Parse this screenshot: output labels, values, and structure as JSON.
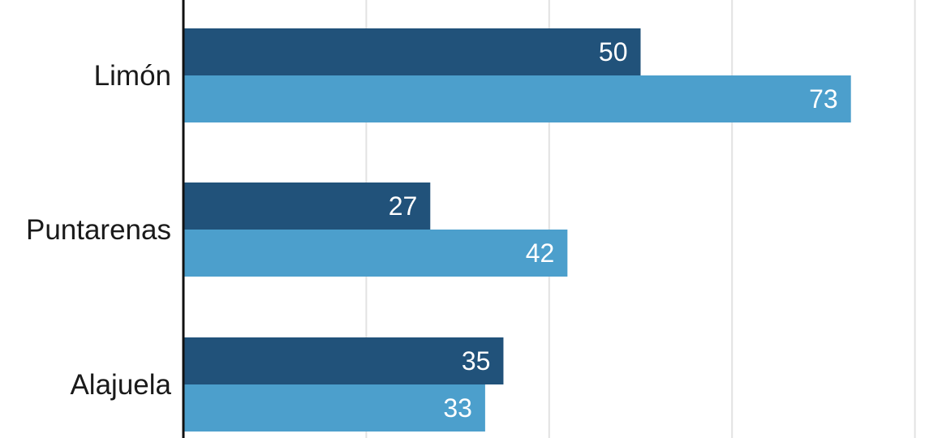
{
  "chart_data": {
    "type": "bar",
    "orientation": "horizontal",
    "categories": [
      "Limón",
      "Puntarenas",
      "Alajuela"
    ],
    "series": [
      {
        "values": [
          50,
          27,
          35
        ],
        "color": "#21527a"
      },
      {
        "values": [
          73,
          42,
          33
        ],
        "color": "#4c9fcc"
      }
    ],
    "value_labels": "inside-end",
    "grid": true,
    "gridline_values": [
      20,
      40,
      60,
      80
    ],
    "xlim": [
      0,
      80
    ]
  }
}
